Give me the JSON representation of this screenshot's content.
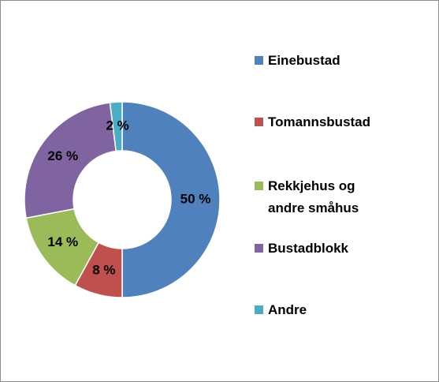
{
  "chart_data": {
    "type": "pie",
    "categories": [
      "Einebustad",
      "Tomannsbustad",
      "Rekkjehus og andre småhus",
      "Bustadblokk",
      "Andre"
    ],
    "values": [
      50,
      8,
      14,
      26,
      2
    ],
    "value_labels": [
      "50 %",
      "8 %",
      "14 %",
      "26 %",
      "2 %"
    ],
    "colors": [
      "#4f81bd",
      "#c0504d",
      "#9bbb59",
      "#8064a2",
      "#4bacc6"
    ],
    "donut": true
  }
}
